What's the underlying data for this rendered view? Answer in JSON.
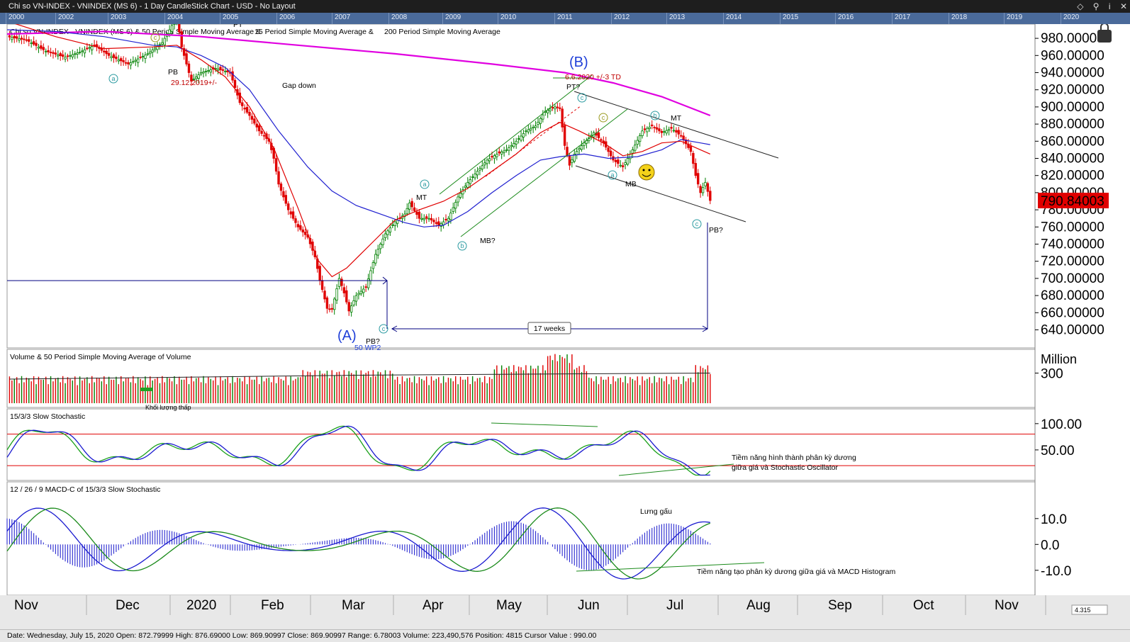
{
  "window": {
    "title": "Chi so VN-INDEX - VNINDEX (MS 6) - 1 Day CandleStick Chart - USD - No Layout"
  },
  "timeline_years": [
    "2000",
    "2002",
    "2003",
    "2004",
    "2005",
    "2006",
    "2007",
    "2008",
    "2009",
    "2010",
    "2011",
    "2012",
    "2013",
    "2014",
    "2015",
    "2016",
    "2017",
    "2018",
    "2019",
    "2020"
  ],
  "status_text": "Date: Wednesday, July 15, 2020 Open: 872.79999 High: 876.69000 Low: 869.90997 Close: 869.90997 Range: 6.78003 Volume: 223,490,576 Position: 4815 Cursor Value : 990.00",
  "zoom_text": "4.315",
  "colors": {
    "up": "#008000",
    "down": "#e00000",
    "sma15": "#e00000",
    "sma50": "#2020d0",
    "sma200": "#e000e0",
    "stoch_k": "#1aa01a",
    "stoch_d": "#1a1ad0",
    "price_badge": "#e00000"
  },
  "chart_data": [
    {
      "type": "candlestick",
      "title_black": "Chi so VN-INDEX - VNINDEX (MS 6) & 50 Period Simple Moving Average & ",
      "title_red": "15 Period Simple Moving Average & ",
      "title_magenta": "200 Period Simple Moving Average",
      "ylim": [
        628,
        990
      ],
      "y_ticks": [
        "980.00000",
        "960.00000",
        "940.00000",
        "920.00000",
        "900.00000",
        "880.00000",
        "860.00000",
        "840.00000",
        "820.00000",
        "800.00000",
        "780.00000",
        "760.00000",
        "740.00000",
        "720.00000",
        "700.00000",
        "680.00000",
        "660.00000",
        "640.00000"
      ],
      "last_price": "790.84003",
      "price_path": [
        [
          0,
          982
        ],
        [
          8,
          978
        ],
        [
          16,
          965
        ],
        [
          24,
          958
        ],
        [
          30,
          964
        ],
        [
          36,
          972
        ],
        [
          42,
          960
        ],
        [
          50,
          950
        ],
        [
          58,
          962
        ],
        [
          64,
          975
        ],
        [
          70,
          1005
        ],
        [
          72,
          970
        ],
        [
          76,
          930
        ],
        [
          80,
          940
        ],
        [
          86,
          945
        ],
        [
          92,
          940
        ],
        [
          96,
          905
        ],
        [
          100,
          890
        ],
        [
          104,
          872
        ],
        [
          108,
          860
        ],
        [
          110,
          840
        ],
        [
          112,
          810
        ],
        [
          116,
          780
        ],
        [
          120,
          760
        ],
        [
          124,
          748
        ],
        [
          127,
          725
        ],
        [
          129,
          698
        ],
        [
          132,
          665
        ],
        [
          134,
          664
        ],
        [
          137,
          700
        ],
        [
          139,
          683
        ],
        [
          141,
          662
        ],
        [
          144,
          680
        ],
        [
          148,
          690
        ],
        [
          152,
          728
        ],
        [
          156,
          752
        ],
        [
          160,
          766
        ],
        [
          164,
          775
        ],
        [
          166,
          788
        ],
        [
          170,
          770
        ],
        [
          174,
          770
        ],
        [
          178,
          762
        ],
        [
          182,
          770
        ],
        [
          186,
          795
        ],
        [
          190,
          812
        ],
        [
          194,
          825
        ],
        [
          198,
          838
        ],
        [
          202,
          845
        ],
        [
          206,
          850
        ],
        [
          210,
          860
        ],
        [
          214,
          872
        ],
        [
          218,
          878
        ],
        [
          222,
          895
        ],
        [
          226,
          900
        ],
        [
          228,
          898
        ],
        [
          230,
          855
        ],
        [
          232,
          832
        ],
        [
          234,
          845
        ],
        [
          238,
          858
        ],
        [
          242,
          870
        ],
        [
          246,
          858
        ],
        [
          250,
          838
        ],
        [
          254,
          830
        ],
        [
          258,
          850
        ],
        [
          262,
          872
        ],
        [
          266,
          878
        ],
        [
          270,
          870
        ],
        [
          274,
          875
        ],
        [
          278,
          866
        ],
        [
          282,
          848
        ],
        [
          284,
          820
        ],
        [
          286,
          800
        ],
        [
          288,
          812
        ],
        [
          290,
          790.84
        ]
      ],
      "sma15_path": [
        [
          0,
          1000
        ],
        [
          20,
          982
        ],
        [
          40,
          968
        ],
        [
          60,
          970
        ],
        [
          70,
          972
        ],
        [
          80,
          955
        ],
        [
          90,
          935
        ],
        [
          100,
          900
        ],
        [
          110,
          852
        ],
        [
          120,
          782
        ],
        [
          128,
          722
        ],
        [
          134,
          702
        ],
        [
          140,
          712
        ],
        [
          150,
          740
        ],
        [
          160,
          768
        ],
        [
          170,
          780
        ],
        [
          180,
          790
        ],
        [
          190,
          805
        ],
        [
          200,
          825
        ],
        [
          210,
          845
        ],
        [
          220,
          870
        ],
        [
          228,
          882
        ],
        [
          236,
          872
        ],
        [
          246,
          858
        ],
        [
          254,
          843
        ],
        [
          262,
          848
        ],
        [
          270,
          858
        ],
        [
          278,
          860
        ],
        [
          286,
          850
        ],
        [
          290,
          845
        ]
      ],
      "sma50_path": [
        [
          0,
          990
        ],
        [
          20,
          988
        ],
        [
          40,
          982
        ],
        [
          60,
          972
        ],
        [
          70,
          970
        ],
        [
          80,
          960
        ],
        [
          90,
          946
        ],
        [
          100,
          920
        ],
        [
          112,
          872
        ],
        [
          124,
          830
        ],
        [
          134,
          802
        ],
        [
          144,
          785
        ],
        [
          154,
          775
        ],
        [
          164,
          765
        ],
        [
          172,
          760
        ],
        [
          180,
          762
        ],
        [
          190,
          778
        ],
        [
          200,
          800
        ],
        [
          210,
          820
        ],
        [
          220,
          838
        ],
        [
          228,
          842
        ],
        [
          238,
          845
        ],
        [
          248,
          840
        ],
        [
          260,
          842
        ],
        [
          270,
          850
        ],
        [
          278,
          862
        ],
        [
          286,
          858
        ],
        [
          290,
          856
        ]
      ],
      "sma200_path": [
        [
          0,
          985
        ],
        [
          40,
          988
        ],
        [
          80,
          982
        ],
        [
          120,
          972
        ],
        [
          160,
          962
        ],
        [
          200,
          950
        ],
        [
          230,
          940
        ],
        [
          250,
          928
        ],
        [
          270,
          912
        ],
        [
          290,
          890
        ]
      ],
      "x_months": [
        "Nov",
        "Dec",
        "2020",
        "Feb",
        "Mar",
        "Apr",
        "May",
        "Jun",
        "Jul",
        "Aug",
        "Sep",
        "Oct",
        "Nov"
      ],
      "annotations": {
        "wave_A": "(A)",
        "wave_B": "(B)",
        "date_label": "6.6.2020 +/-3 TD",
        "date_label2": "29.12.2019+/-",
        "pb": "PB",
        "pt": "PT",
        "gap_down": "Gap down",
        "mt": "MT",
        "mt2": "MT",
        "mb_q": "MB?",
        "pt_q": "PT?",
        "mb": "MB",
        "pb_q": "PB?",
        "pb_q2": "PB?",
        "weeks": "17 weeks",
        "ma50": "50 WP2",
        "a": "a",
        "b": "b",
        "c": "c"
      }
    },
    {
      "type": "bar",
      "title": "Volume & 50 Period Simple Moving Average of Volume",
      "unit": "Million",
      "y_ticks": [
        "300"
      ],
      "vol_ma": 280,
      "scale_max": 480,
      "clipped_text": "Khối lượng thấp"
    },
    {
      "type": "line",
      "title": "15/3/3 Slow Stochastic",
      "y_ticks": [
        "100.00",
        "50.00"
      ],
      "ylim": [
        0,
        120
      ],
      "bands": [
        80,
        20
      ],
      "note_line1": "Tiềm năng hình thành phân kỳ dương",
      "note_line2": "giữa giá và Stochastic Oscillator"
    },
    {
      "type": "bar",
      "title": "12 / 26 / 9 MACD-C of 15/3/3 Slow Stochastic",
      "y_ticks": [
        "10.0",
        "0.0",
        "-10.0"
      ],
      "ylim": [
        -18,
        22
      ],
      "label_mid": "Lưng gấu",
      "note": "Tiềm năng tạo phân kỳ dương giữa giá và MACD Histogram"
    }
  ]
}
